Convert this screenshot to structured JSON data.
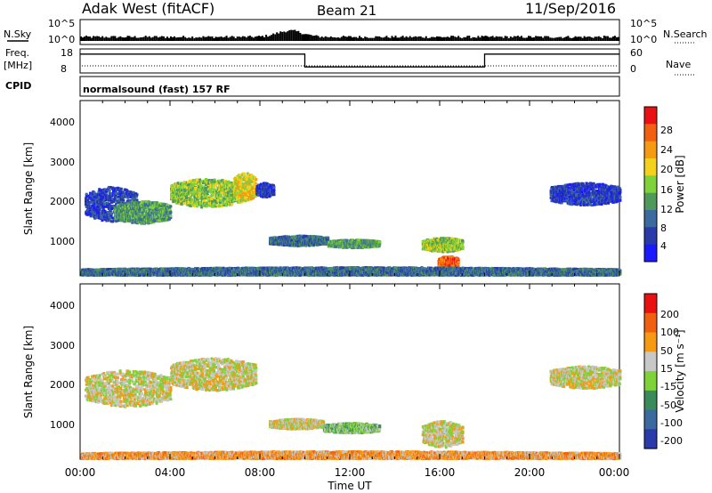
{
  "header": {
    "station": "Adak West (fitACF)",
    "beam": "Beam 21",
    "date": "11/Sep/2016"
  },
  "strip_labels": {
    "nsky": "N.Sky",
    "freq": "Freq.",
    "freq_unit": "[MHz]",
    "cpid": "CPID",
    "nsearch": "N.Search",
    "nave": "Nave",
    "cpid_text": "normalsound (fast) 157 RF",
    "nsky_ticks": [
      "10^5",
      "10^0"
    ],
    "freq_ticks": [
      "18",
      "8"
    ],
    "nave_ticks": [
      "60",
      "0"
    ]
  },
  "axes": {
    "y_label": "Slant Range [km]",
    "x_label": "Time UT",
    "y_ticks": [
      "1000",
      "2000",
      "3000",
      "4000"
    ],
    "x_ticks": [
      "00:00",
      "04:00",
      "08:00",
      "12:00",
      "16:00",
      "20:00",
      "00:00"
    ]
  },
  "colorbars": {
    "power": {
      "label": "Power [dB]",
      "ticks": [
        "4",
        "8",
        "12",
        "16",
        "20",
        "24",
        "28"
      ],
      "colors": [
        "#1a1aff",
        "#2a3aa8",
        "#3b6a9e",
        "#4f9a5a",
        "#7fd23a",
        "#f2d21c",
        "#f59a12",
        "#f06010",
        "#e81010"
      ]
    },
    "velocity": {
      "label": "Velocity [m s⁻¹]",
      "ticks": [
        "200",
        "100",
        "50",
        "15",
        "-15",
        "-50",
        "-100",
        "-200"
      ],
      "colors": [
        "#2a3aa8",
        "#3b6a9e",
        "#3a8a5a",
        "#7fd23a",
        "#c8c8c8",
        "#f59a12",
        "#f06010",
        "#e81010"
      ]
    }
  },
  "chart_data": [
    {
      "type": "line",
      "title": "N.Sky / N.Search",
      "x": [
        "00:00",
        "04:00",
        "08:00",
        "09:30",
        "12:00",
        "16:00",
        "20:00",
        "24:00"
      ],
      "values": [
        10,
        12,
        15,
        150,
        20,
        15,
        12,
        10
      ],
      "ylim_labels": [
        "10^0",
        "10^5"
      ],
      "y_scale": "log"
    },
    {
      "type": "line",
      "title": "Freq. / Nave",
      "series": [
        {
          "name": "Freq. [MHz]",
          "x": [
            0,
            10,
            10,
            18,
            18,
            24
          ],
          "values": [
            16,
            16,
            10,
            10,
            16,
            16
          ]
        },
        {
          "name": "Nave",
          "x": [
            0,
            24
          ],
          "values": [
            12,
            12
          ]
        }
      ],
      "xlim": [
        0,
        24
      ]
    },
    {
      "type": "heatmap",
      "title": "Power [dB]",
      "x_unit": "hours UT",
      "y_unit": "km",
      "xlim": [
        0,
        24
      ],
      "ylim": [
        180,
        4500
      ],
      "regions": [
        {
          "t0": 0.2,
          "t1": 2.5,
          "r0": 1550,
          "r1": 2400,
          "level": 1
        },
        {
          "t0": 1.5,
          "t1": 4.0,
          "r0": 1500,
          "r1": 2050,
          "level": 3
        },
        {
          "t0": 4.0,
          "t1": 7.2,
          "r0": 1900,
          "r1": 2600,
          "level": 4
        },
        {
          "t0": 6.8,
          "t1": 7.8,
          "r0": 2050,
          "r1": 2750,
          "level": 5
        },
        {
          "t0": 7.8,
          "t1": 8.6,
          "r0": 2150,
          "r1": 2500,
          "level": 1
        },
        {
          "t0": 8.4,
          "t1": 11.0,
          "r0": 950,
          "r1": 1200,
          "level": 2
        },
        {
          "t0": 11.0,
          "t1": 13.3,
          "r0": 900,
          "r1": 1100,
          "level": 3
        },
        {
          "t0": 15.2,
          "t1": 17.0,
          "r0": 800,
          "r1": 1150,
          "level": 4
        },
        {
          "t0": 15.9,
          "t1": 16.8,
          "r0": 380,
          "r1": 700,
          "level": 7
        },
        {
          "t0": 20.9,
          "t1": 24.0,
          "r0": 1950,
          "r1": 2500,
          "level": 1
        },
        {
          "t0": 0.0,
          "t1": 24.0,
          "r0": 180,
          "r1": 420,
          "level": 2
        }
      ]
    },
    {
      "type": "heatmap",
      "title": "Velocity [m s-1]",
      "x_unit": "hours UT",
      "y_unit": "km",
      "xlim": [
        0,
        24
      ],
      "ylim": [
        180,
        4500
      ],
      "regions": [
        {
          "t0": 0.2,
          "t1": 4.0,
          "r0": 1500,
          "r1": 2400,
          "level": 4
        },
        {
          "t0": 4.0,
          "t1": 7.8,
          "r0": 1900,
          "r1": 2700,
          "level": 4
        },
        {
          "t0": 8.4,
          "t1": 10.8,
          "r0": 950,
          "r1": 1200,
          "level": 4
        },
        {
          "t0": 10.8,
          "t1": 13.3,
          "r0": 850,
          "r1": 1100,
          "level": 3
        },
        {
          "t0": 15.2,
          "t1": 17.0,
          "r0": 500,
          "r1": 1150,
          "level": 4
        },
        {
          "t0": 20.9,
          "t1": 24.0,
          "r0": 1950,
          "r1": 2500,
          "level": 4
        },
        {
          "t0": 0.0,
          "t1": 24.0,
          "r0": 180,
          "r1": 400,
          "level": 5
        }
      ]
    }
  ]
}
